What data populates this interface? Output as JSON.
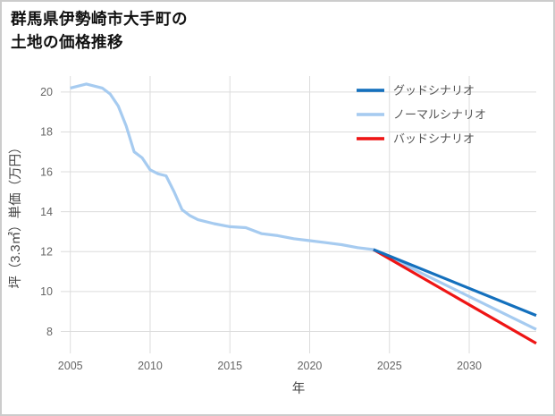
{
  "page": {
    "title_line1": "群馬県伊勢崎市大手町の",
    "title_line2": "土地の価格推移"
  },
  "chart_data": {
    "type": "line",
    "title": "群馬県伊勢崎市大手町の土地の価格推移",
    "xlabel": "年",
    "ylabel": "坪（3.3㎡）単価（万円）",
    "xlim": [
      2004.4,
      2034.2
    ],
    "ylim": [
      6.9,
      20.8
    ],
    "xticks": [
      2005,
      2010,
      2015,
      2020,
      2025,
      2030
    ],
    "yticks": [
      8,
      10,
      12,
      14,
      16,
      18,
      20
    ],
    "grid": true,
    "legend_position": "top-right",
    "colors": {
      "grid": "#dcdcdc",
      "tick_label": "#666666",
      "axis_label": "#444444",
      "legend_label": "#555555",
      "title": "#111111",
      "border": "#cccccc"
    },
    "series": [
      {
        "id": "good",
        "name": "グッドシナリオ",
        "color": "#1470bd",
        "x": [
          2024,
          2034.2
        ],
        "y": [
          12.1,
          8.8
        ]
      },
      {
        "id": "normal",
        "name": "ノーマルシナリオ",
        "color": "#a6cbf0",
        "x": [
          2005,
          2005.5,
          2006,
          2006.5,
          2007,
          2007.5,
          2008,
          2008.5,
          2009,
          2009.5,
          2010,
          2010.5,
          2011,
          2011.5,
          2012,
          2012.5,
          2013,
          2014,
          2015,
          2016,
          2017,
          2018,
          2019,
          2020,
          2021,
          2022,
          2023,
          2024,
          2034.2
        ],
        "y": [
          20.2,
          20.3,
          20.4,
          20.3,
          20.2,
          19.9,
          19.3,
          18.3,
          17.0,
          16.7,
          16.1,
          15.9,
          15.8,
          15.0,
          14.1,
          13.8,
          13.6,
          13.4,
          13.25,
          13.2,
          12.9,
          12.8,
          12.65,
          12.55,
          12.45,
          12.35,
          12.2,
          12.1,
          8.1
        ]
      },
      {
        "id": "bad",
        "name": "バッドシナリオ",
        "color": "#ee1515",
        "x": [
          2024,
          2034.2
        ],
        "y": [
          12.1,
          7.4
        ]
      }
    ]
  }
}
